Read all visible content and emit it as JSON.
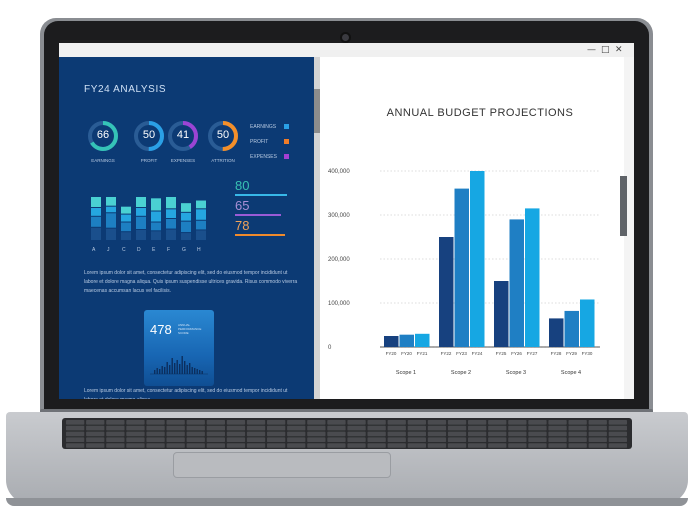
{
  "window": {
    "minimize": "—",
    "maximize": "□",
    "close": "✕"
  },
  "analysis": {
    "title": "FY24 ANALYSIS",
    "donuts": [
      {
        "value": "66",
        "label": "EARNINGS",
        "percent": 66,
        "color": "#35c3b7"
      },
      {
        "value": "50",
        "label": "PROFIT",
        "percent": 50,
        "color": "#2aa0e6"
      },
      {
        "value": "41",
        "label": "EXPENSES",
        "percent": 41,
        "color": "#9b44d4"
      },
      {
        "value": "50",
        "label": "ATTRITION",
        "percent": 50,
        "color": "#f38f2a"
      }
    ],
    "legend": [
      {
        "label": "EARNINGS",
        "color": "#2aa0e6"
      },
      {
        "label": "PROFIT",
        "color": "#f07c28"
      },
      {
        "label": "EXPENSES",
        "color": "#a43fd3"
      }
    ],
    "bar_labels": [
      "A",
      "J",
      "C",
      "D",
      "E",
      "F",
      "G",
      "H"
    ],
    "bar_values": [
      [
        0.3,
        0.25,
        0.2,
        0.25
      ],
      [
        0.28,
        0.35,
        0.15,
        0.22
      ],
      [
        0.2,
        0.22,
        0.18,
        0.18
      ],
      [
        0.25,
        0.3,
        0.2,
        0.25
      ],
      [
        0.22,
        0.2,
        0.25,
        0.3
      ],
      [
        0.26,
        0.24,
        0.22,
        0.28
      ],
      [
        0.18,
        0.26,
        0.2,
        0.22
      ],
      [
        0.24,
        0.22,
        0.26,
        0.2
      ]
    ],
    "stats": [
      {
        "value": "80",
        "color": "#37c1b3",
        "line": "#38b8e8"
      },
      {
        "value": "65",
        "color": "#a88fd6",
        "line": "#9a5bd6"
      },
      {
        "value": "78",
        "color": "#f1a259",
        "line": "#f08a2c"
      }
    ],
    "paragraph1": "Lorem ipsum dolor sit amet, consectetur adipiscing elit, sed do eiusmod tempor incididunt ut labore et dolore magna aliqua. Quis ipsum suspendisse ultrices gravida. Risus commodo viverra maecenas accumsan lacus vel facilisis.",
    "card": {
      "value": "478",
      "subtitle": "ANNUAL PERFORMANCE SCORE"
    },
    "paragraph2": "Lorem ipsum dolor sit amet, consectetur adipiscing elit, sed do eiusmod tempor incididunt ut labore et dolore magna aliqua."
  },
  "chart_data": {
    "type": "bar",
    "title": "ANNUAL BUDGET PROJECTIONS",
    "xlabel": "",
    "ylabel": "",
    "ylim": [
      0,
      400000
    ],
    "y_ticks": [
      "400,000",
      "300,000",
      "200,000",
      "100,000",
      "0"
    ],
    "grid": true,
    "groups": [
      {
        "name": "Scope 1",
        "categories": [
          "FY20",
          "FY20",
          "FY21"
        ],
        "values": [
          25000,
          28000,
          30000
        ]
      },
      {
        "name": "Scope 2",
        "categories": [
          "FY22",
          "FY23",
          "FY24"
        ],
        "values": [
          250000,
          360000,
          400000
        ]
      },
      {
        "name": "Scope 3",
        "categories": [
          "FY25",
          "FY26",
          "FY27"
        ],
        "values": [
          150000,
          290000,
          315000
        ]
      },
      {
        "name": "Scope 4",
        "categories": [
          "FY28",
          "FY29",
          "FY30"
        ],
        "values": [
          65000,
          82000,
          108000
        ]
      }
    ],
    "colors": [
      "#17417f",
      "#1f7fc4",
      "#16a7e3"
    ]
  }
}
